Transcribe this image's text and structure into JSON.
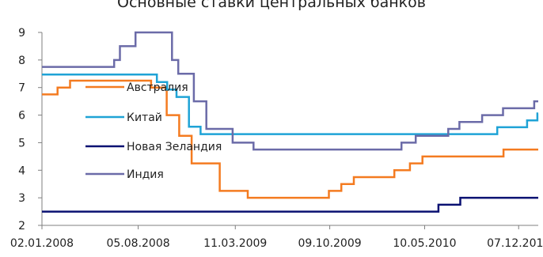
{
  "chart_data": {
    "type": "line",
    "title": "Основные ставки центральных банков",
    "xlabel": "",
    "ylabel": "",
    "ylim": [
      2,
      9
    ],
    "yticks": [
      2,
      3,
      4,
      5,
      6,
      7,
      8,
      9
    ],
    "xlim": [
      "2008-01-02",
      "2011-01-20"
    ],
    "x_tick_labels": [
      "02.01.2008",
      "05.08.2008",
      "11.03.2009",
      "09.10.2009",
      "10.05.2010",
      "07.12.2010"
    ],
    "x_tick_dates": [
      "2008-01-02",
      "2008-08-05",
      "2009-03-11",
      "2009-10-09",
      "2010-05-10",
      "2010-12-07"
    ],
    "grid": false,
    "legend_position": "inside-left",
    "step": true,
    "series": [
      {
        "name": "Австралия",
        "color": "#F47B20",
        "points": [
          [
            "2008-01-02",
            6.75
          ],
          [
            "2008-02-06",
            7.0
          ],
          [
            "2008-03-05",
            7.25
          ],
          [
            "2008-09-03",
            7.0
          ],
          [
            "2008-10-08",
            6.0
          ],
          [
            "2008-11-05",
            5.25
          ],
          [
            "2008-12-03",
            4.25
          ],
          [
            "2009-02-04",
            3.25
          ],
          [
            "2009-04-08",
            3.0
          ],
          [
            "2009-10-07",
            3.25
          ],
          [
            "2009-11-04",
            3.5
          ],
          [
            "2009-12-02",
            3.75
          ],
          [
            "2010-03-03",
            4.0
          ],
          [
            "2010-04-07",
            4.25
          ],
          [
            "2010-05-05",
            4.5
          ],
          [
            "2010-11-03",
            4.75
          ],
          [
            "2011-01-20",
            4.75
          ]
        ]
      },
      {
        "name": "Китай",
        "color": "#1FA3D6",
        "points": [
          [
            "2008-01-02",
            7.47
          ],
          [
            "2008-09-16",
            7.2
          ],
          [
            "2008-10-09",
            6.93
          ],
          [
            "2008-10-30",
            6.66
          ],
          [
            "2008-11-27",
            5.58
          ],
          [
            "2008-12-23",
            5.31
          ],
          [
            "2010-10-20",
            5.56
          ],
          [
            "2010-12-26",
            5.81
          ],
          [
            "2011-01-18",
            6.06
          ],
          [
            "2011-01-20",
            6.06
          ]
        ]
      },
      {
        "name": "Новая Зеландия",
        "color": "#0A1172",
        "points": [
          [
            "2008-01-02",
            2.5
          ],
          [
            "2010-06-10",
            2.75
          ],
          [
            "2010-07-29",
            3.0
          ],
          [
            "2011-01-20",
            3.0
          ]
        ]
      },
      {
        "name": "Индия",
        "color": "#6B6BA8",
        "points": [
          [
            "2008-01-02",
            7.75
          ],
          [
            "2008-06-12",
            8.0
          ],
          [
            "2008-06-25",
            8.5
          ],
          [
            "2008-07-30",
            9.0
          ],
          [
            "2008-10-20",
            8.0
          ],
          [
            "2008-11-03",
            7.5
          ],
          [
            "2008-12-08",
            6.5
          ],
          [
            "2009-01-05",
            5.5
          ],
          [
            "2009-03-05",
            5.0
          ],
          [
            "2009-04-21",
            4.75
          ],
          [
            "2010-03-19",
            5.0
          ],
          [
            "2010-04-20",
            5.25
          ],
          [
            "2010-07-02",
            5.5
          ],
          [
            "2010-07-27",
            5.75
          ],
          [
            "2010-09-16",
            6.0
          ],
          [
            "2010-11-02",
            6.25
          ],
          [
            "2011-01-11",
            6.5
          ],
          [
            "2011-01-20",
            6.5
          ]
        ]
      }
    ]
  }
}
